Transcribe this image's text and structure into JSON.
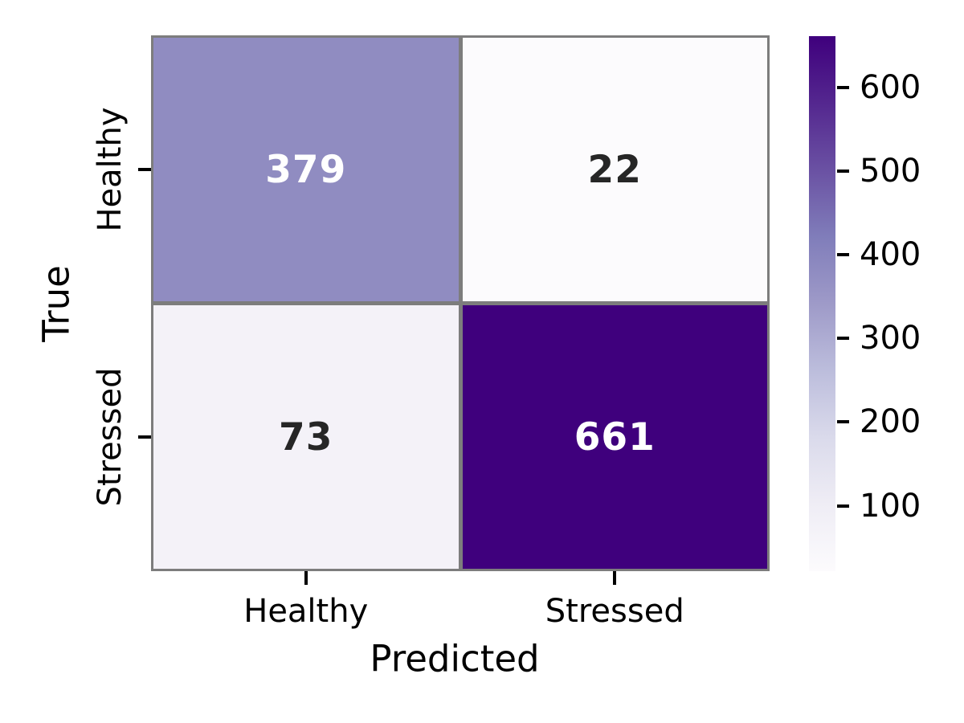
{
  "chart_data": {
    "type": "heatmap",
    "subtype": "confusion-matrix",
    "title": "",
    "xlabel": "Predicted",
    "ylabel": "True",
    "x_categories": [
      "Healthy",
      "Stressed"
    ],
    "y_categories": [
      "Healthy",
      "Stressed"
    ],
    "values": [
      [
        379,
        22
      ],
      [
        73,
        661
      ]
    ],
    "vmin": 22,
    "vmax": 661,
    "colorbar_ticks": [
      100,
      200,
      300,
      400,
      500,
      600
    ],
    "colorbar_position": "right",
    "grid": false,
    "colormap_name": "Purples",
    "colormap_anchors": [
      "#fcfbfd",
      "#efedf5",
      "#dadaeb",
      "#bcbddc",
      "#9e9ac8",
      "#807dba",
      "#6a51a3",
      "#54278f",
      "#3f007d"
    ],
    "grid_line_color": "#7d7d7d",
    "annotation_light_text": "#ffffff",
    "annotation_dark_text": "#262626",
    "axis_text_color": "#000000"
  }
}
